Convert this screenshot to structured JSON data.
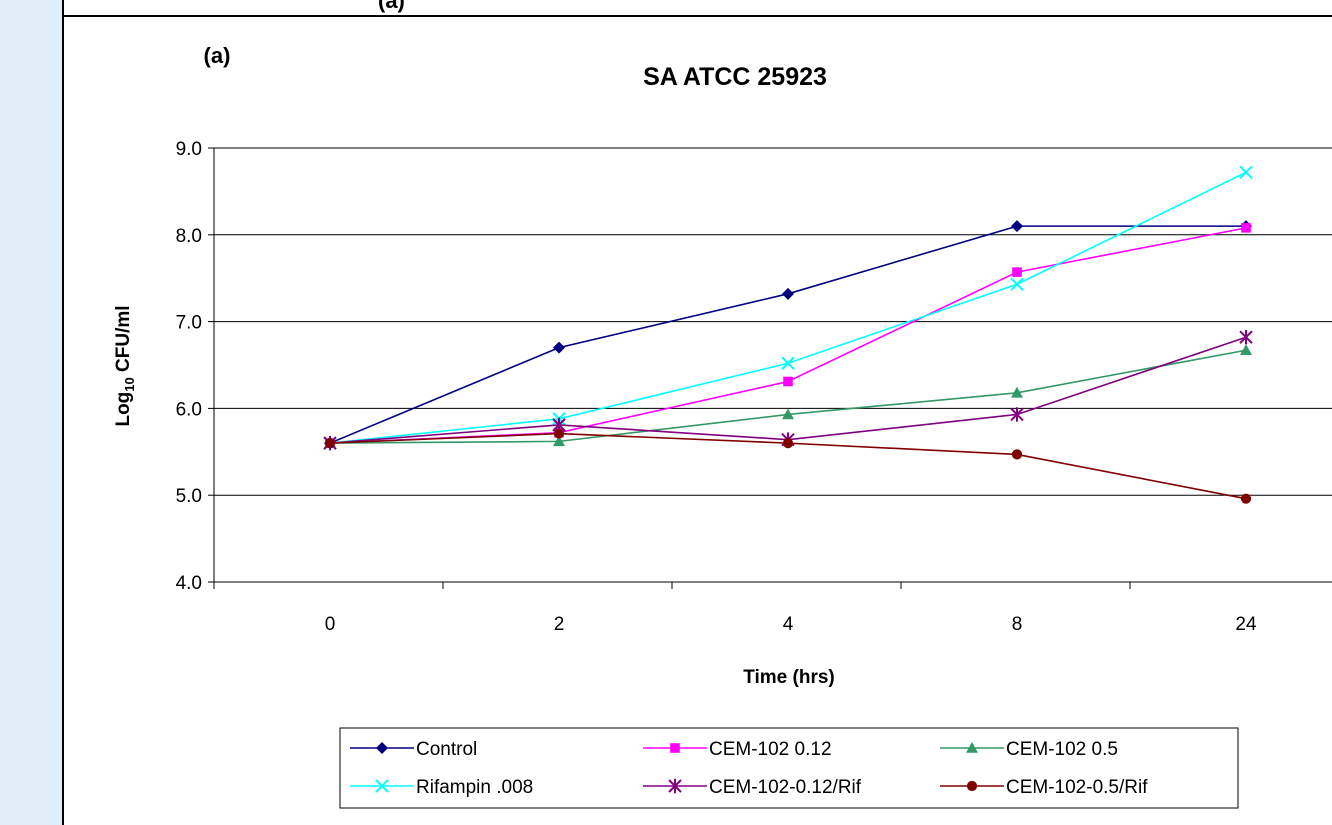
{
  "page": {
    "top_fragment": "(a)"
  },
  "chart_data": {
    "type": "line",
    "panel_label": "(a)",
    "title": "SA ATCC 25923",
    "xlabel": "Time (hrs)",
    "ylabel_main": "Log",
    "ylabel_sub": "10",
    "ylabel_rest": " CFU/ml",
    "categories": [
      "0",
      "2",
      "4",
      "8",
      "24"
    ],
    "ylim": [
      4.0,
      9.0
    ],
    "yticks": [
      "4.0",
      "5.0",
      "6.0",
      "7.0",
      "8.0",
      "9.0"
    ],
    "grid": "horizontal",
    "legend_position": "bottom",
    "series": [
      {
        "name": "Control",
        "values": [
          5.6,
          6.7,
          7.32,
          8.1,
          8.1
        ],
        "color": "#000080",
        "marker": "diamond"
      },
      {
        "name": "CEM-102 0.12",
        "values": [
          5.6,
          5.72,
          6.31,
          7.57,
          8.08
        ],
        "color": "#ff00ff",
        "marker": "square"
      },
      {
        "name": "CEM-102 0.5",
        "values": [
          5.6,
          5.62,
          5.93,
          6.18,
          6.67
        ],
        "color": "#339966",
        "marker": "triangle"
      },
      {
        "name": "Rifampin .008",
        "values": [
          5.6,
          5.88,
          6.52,
          7.43,
          8.72
        ],
        "color": "#00ffff",
        "marker": "x"
      },
      {
        "name": "CEM-102-0.12/Rif",
        "values": [
          5.6,
          5.81,
          5.64,
          5.93,
          6.82
        ],
        "color": "#800080",
        "marker": "star"
      },
      {
        "name": "CEM-102-0.5/Rif",
        "values": [
          5.6,
          5.71,
          5.6,
          5.47,
          4.96
        ],
        "color": "#800000",
        "marker": "circle"
      }
    ]
  }
}
